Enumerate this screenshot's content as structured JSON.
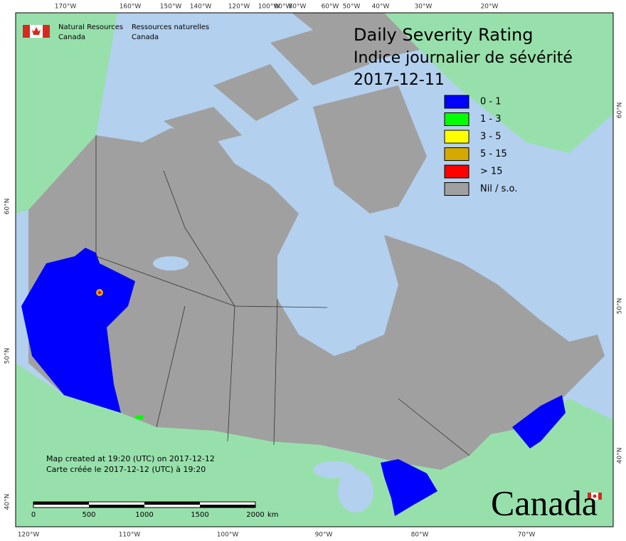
{
  "header": {
    "agency_en": [
      "Natural Resources",
      "Canada"
    ],
    "agency_fr": [
      "Ressources naturelles",
      "Canada"
    ]
  },
  "title": {
    "line1": "Daily Severity Rating",
    "line2": "Indice journalier de sévérité",
    "date": "2017-12-11"
  },
  "legend": [
    {
      "label": "0 - 1",
      "color": "#0000ff"
    },
    {
      "label": "1 - 3",
      "color": "#00ff00"
    },
    {
      "label": "3 - 5",
      "color": "#ffff00"
    },
    {
      "label": "5 - 15",
      "color": "#d4aa00"
    },
    {
      "label": "> 15",
      "color": "#ff0000"
    },
    {
      "label": "Nil / s.o.",
      "color": "#a0a0a0"
    }
  ],
  "top_lon_labels": [
    "170°W",
    "160°W",
    "150°W",
    "140°W",
    "120°W",
    "100°W",
    "90°W",
    "80°W",
    "60°W",
    "50°W",
    "40°W",
    "30°W",
    "20°W"
  ],
  "bottom_lon_labels": [
    "120°W",
    "110°W",
    "100°W",
    "90°W",
    "80°W",
    "70°W"
  ],
  "left_lat_labels": [
    "60°N",
    "50°N",
    "40°N"
  ],
  "right_lat_labels": [
    "60°N",
    "50°N",
    "40°N"
  ],
  "scale": {
    "ticks": [
      0,
      500,
      1000,
      1500,
      2000
    ],
    "unit": "km"
  },
  "credit": [
    "Map created at 19:20 (UTC) on 2017-12-12",
    "Carte créée le 2017-12-12 (UTC) à 19:20"
  ],
  "wordmark": "Canada"
}
